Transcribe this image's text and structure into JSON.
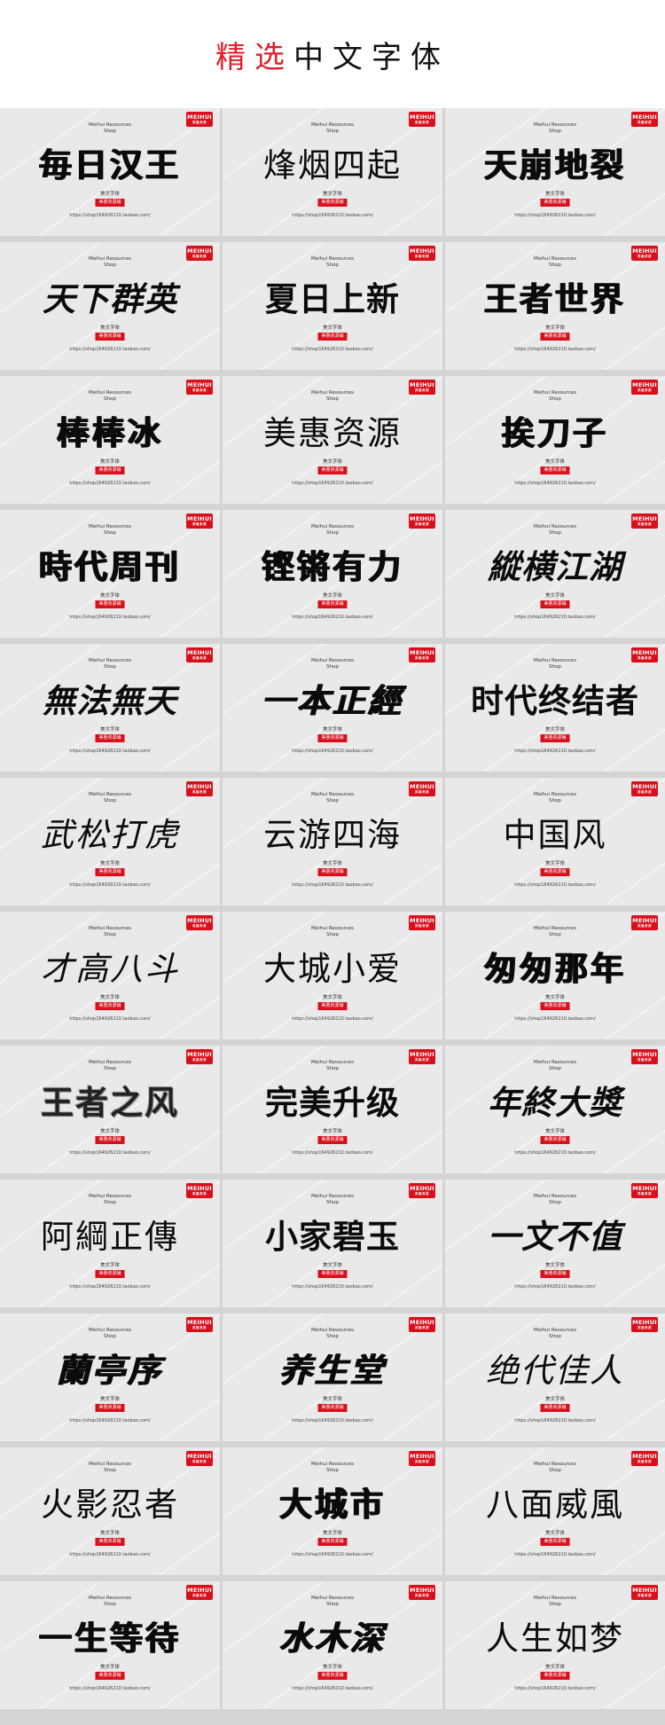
{
  "header": {
    "title_accent": "精选",
    "title_rest": "中文字体"
  },
  "card_common": {
    "logo_word": "MEIHUI",
    "logo_sub": "美惠资源",
    "shop_line1": "Meihui Resources",
    "shop_line2": "Shop",
    "caption": "美文字体",
    "badge": "美惠资源铺"
  },
  "cards": [
    {
      "sample": "毎日汉王",
      "style": "heavy",
      "url": "https://shop164926210.taobao.com/"
    },
    {
      "sample": "烽烟四起",
      "style": "light",
      "url": "https://shop164926210.taobao.com/"
    },
    {
      "sample": "天崩地裂",
      "style": "heavy",
      "url": "https://shop164926210.taobao.com/"
    },
    {
      "sample": "天下群英",
      "style": "bold italic",
      "url": "https://shop164926210.taobao.com/"
    },
    {
      "sample": "夏日上新",
      "style": "bold",
      "url": "https://shop164926210.taobao.com/"
    },
    {
      "sample": "王者世界",
      "style": "heavy",
      "url": "https://shop164926210.taobao.com/"
    },
    {
      "sample": "棒棒冰",
      "style": "heavy",
      "url": "https://shop164926210.taobao.com/"
    },
    {
      "sample": "美惠资源",
      "style": "light serif",
      "url": "https://shop164926210.taobao.com/"
    },
    {
      "sample": "挨刀子",
      "style": "heavy",
      "url": "https://shop164926210.taobao.com/"
    },
    {
      "sample": "時代周刊",
      "style": "heavy",
      "url": "https://shop164926210.taobao.com/"
    },
    {
      "sample": "铿锵有力",
      "style": "heavy",
      "url": "https://shop164926210.taobao.com/"
    },
    {
      "sample": "縱横江湖",
      "style": "bold italic",
      "url": "https://shop164926210.taobao.com/"
    },
    {
      "sample": "無法無天",
      "style": "bold italic serif",
      "url": "https://shop164926210.taobao.com/"
    },
    {
      "sample": "一本正經",
      "style": "heavy italic",
      "url": "https://shop164926210.taobao.com/"
    },
    {
      "sample": "时代终结者",
      "style": "bold",
      "url": "https://shop164926210.taobao.com/"
    },
    {
      "sample": "武松打虎",
      "style": "light italic",
      "url": "https://shop164926210.taobao.com/"
    },
    {
      "sample": "云游四海",
      "style": "light serif",
      "url": "https://shop164926210.taobao.com/"
    },
    {
      "sample": "中国风",
      "style": "light serif",
      "url": "https://shop164926210.taobao.com/"
    },
    {
      "sample": "才高八斗",
      "style": "light italic",
      "url": "https://shop164926210.taobao.com/"
    },
    {
      "sample": "大城小爱",
      "style": "light",
      "url": "https://shop164926210.taobao.com/"
    },
    {
      "sample": "匆匆那年",
      "style": "heavy serif",
      "url": "https://shop164926210.taobao.com/"
    },
    {
      "sample": "王者之风",
      "style": "dotted",
      "url": "https://shop164926210.taobao.com/"
    },
    {
      "sample": "完美升级",
      "style": "bold",
      "url": "https://shop164926210.taobao.com/"
    },
    {
      "sample": "年終大獎",
      "style": "bold italic",
      "url": "https://shop164926210.taobao.com/"
    },
    {
      "sample": "阿綱正傳",
      "style": "light",
      "url": "https://shop164926210.taobao.com/"
    },
    {
      "sample": "小家碧玉",
      "style": "bold serif",
      "url": "https://shop164926210.taobao.com/"
    },
    {
      "sample": "一文不值",
      "style": "bold italic",
      "url": "https://shop164926210.taobao.com/"
    },
    {
      "sample": "蘭亭序",
      "style": "heavy serif italic",
      "url": "https://shop164926210.taobao.com/"
    },
    {
      "sample": "养生堂",
      "style": "heavy italic",
      "url": "https://shop164926210.taobao.com/"
    },
    {
      "sample": "绝代佳人",
      "style": "light italic",
      "url": "https://shop164926210.taobao.com/"
    },
    {
      "sample": "火影忍者",
      "style": "light",
      "url": "https://shop164926210.taobao.com/"
    },
    {
      "sample": "大城市",
      "style": "heavy",
      "url": "https://shop164926210.taobao.com/"
    },
    {
      "sample": "八面威風",
      "style": "light serif",
      "url": "https://shop164926210.taobao.com/"
    },
    {
      "sample": "一生等待",
      "style": "heavy",
      "url": "https://shop164926210.taobao.com/"
    },
    {
      "sample": "水木深",
      "style": "heavy italic",
      "url": "https://shop164926210.taobao.com/"
    },
    {
      "sample": "人生如梦",
      "style": "light",
      "url": "https://shop164926210.taobao.com/"
    }
  ]
}
